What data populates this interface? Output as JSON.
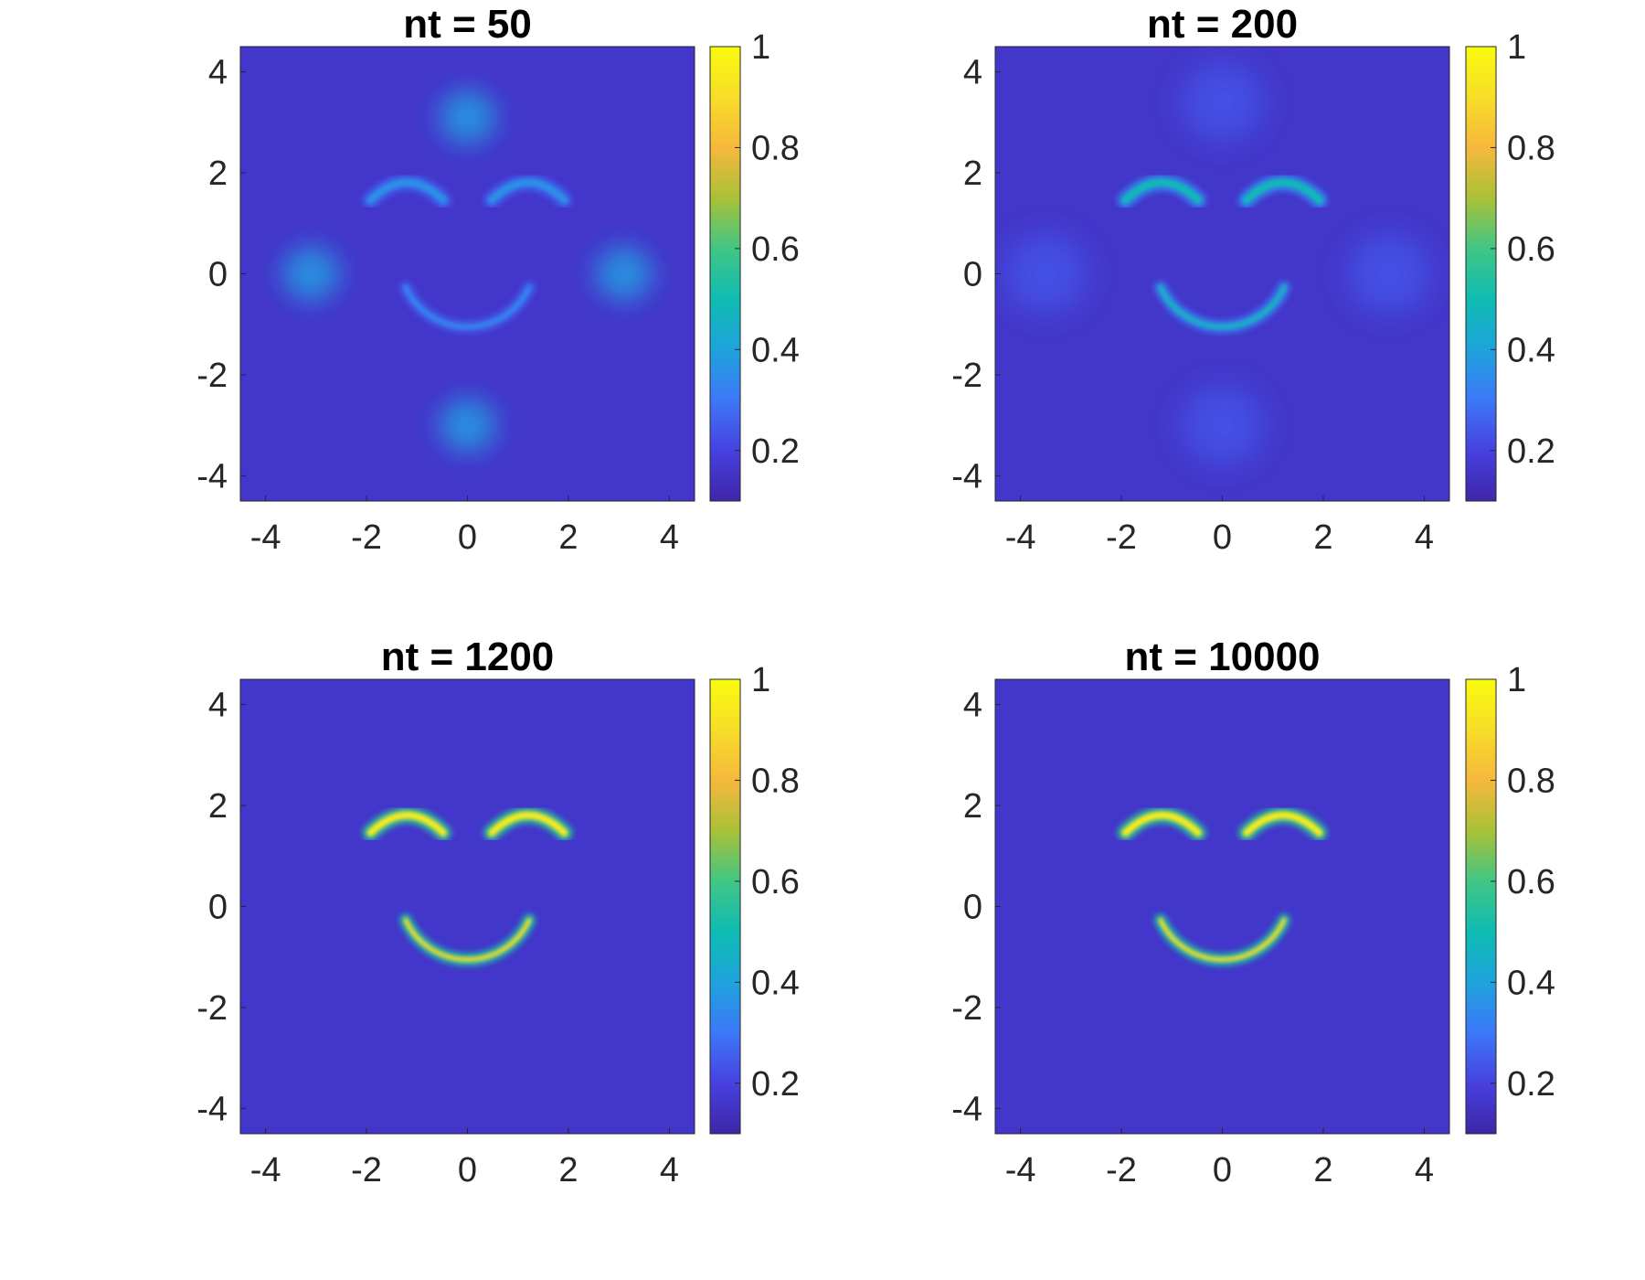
{
  "chart_data": [
    {
      "type": "heatmap",
      "title": "nt = 50",
      "xlabel": "",
      "ylabel": "",
      "xlim": [
        -4.5,
        4.5
      ],
      "ylim": [
        -4.5,
        4.5
      ],
      "x_ticks": [
        "-4",
        "-2",
        "0",
        "2",
        "4"
      ],
      "y_ticks": [
        "4",
        "2",
        "0",
        "-2",
        "-4"
      ],
      "colorbar": {
        "range": [
          0.1,
          1
        ],
        "ticks": [
          "1",
          "0.8",
          "0.6",
          "0.4",
          "0.2"
        ]
      },
      "background_value": 0.16,
      "features": [
        {
          "kind": "blob",
          "center": [
            0,
            3.1
          ],
          "radius": 0.75,
          "peak": 0.38
        },
        {
          "kind": "blob",
          "center": [
            0,
            -3.0
          ],
          "radius": 0.75,
          "peak": 0.38
        },
        {
          "kind": "blob",
          "center": [
            -3.1,
            0
          ],
          "radius": 0.75,
          "peak": 0.38
        },
        {
          "kind": "blob",
          "center": [
            3.1,
            0
          ],
          "radius": 0.75,
          "peak": 0.38
        },
        {
          "kind": "eyebrow",
          "center": [
            -1.2,
            1.7
          ],
          "peak": 0.36
        },
        {
          "kind": "eyebrow",
          "center": [
            1.2,
            1.7
          ],
          "peak": 0.36
        },
        {
          "kind": "smile",
          "center": [
            0,
            0.3
          ],
          "radius": 1.35,
          "peak": 0.34
        }
      ]
    },
    {
      "type": "heatmap",
      "title": "nt = 200",
      "xlabel": "",
      "ylabel": "",
      "xlim": [
        -4.5,
        4.5
      ],
      "ylim": [
        -4.5,
        4.5
      ],
      "x_ticks": [
        "-4",
        "-2",
        "0",
        "2",
        "4"
      ],
      "y_ticks": [
        "4",
        "2",
        "0",
        "-2",
        "-4"
      ],
      "colorbar": {
        "range": [
          0.1,
          1
        ],
        "ticks": [
          "1",
          "0.8",
          "0.6",
          "0.4",
          "0.2"
        ]
      },
      "background_value": 0.16,
      "features": [
        {
          "kind": "blob",
          "center": [
            0,
            3.4
          ],
          "radius": 1.1,
          "peak": 0.23
        },
        {
          "kind": "blob",
          "center": [
            0,
            -3.0
          ],
          "radius": 1.1,
          "peak": 0.23
        },
        {
          "kind": "blob",
          "center": [
            -3.5,
            0
          ],
          "radius": 1.1,
          "peak": 0.23
        },
        {
          "kind": "blob",
          "center": [
            3.3,
            0
          ],
          "radius": 1.1,
          "peak": 0.23
        },
        {
          "kind": "eyebrow",
          "center": [
            -1.2,
            1.7
          ],
          "peak": 0.5
        },
        {
          "kind": "eyebrow",
          "center": [
            1.2,
            1.7
          ],
          "peak": 0.5
        },
        {
          "kind": "smile",
          "center": [
            0,
            0.3
          ],
          "radius": 1.35,
          "peak": 0.48
        }
      ]
    },
    {
      "type": "heatmap",
      "title": "nt = 1200",
      "xlabel": "",
      "ylabel": "",
      "xlim": [
        -4.5,
        4.5
      ],
      "ylim": [
        -4.5,
        4.5
      ],
      "x_ticks": [
        "-4",
        "-2",
        "0",
        "2",
        "4"
      ],
      "y_ticks": [
        "4",
        "2",
        "0",
        "-2",
        "-4"
      ],
      "colorbar": {
        "range": [
          0.1,
          1
        ],
        "ticks": [
          "1",
          "0.8",
          "0.6",
          "0.4",
          "0.2"
        ]
      },
      "background_value": 0.16,
      "features": [
        {
          "kind": "eyebrow",
          "center": [
            -1.2,
            1.7
          ],
          "peak": 0.95
        },
        {
          "kind": "eyebrow",
          "center": [
            1.2,
            1.7
          ],
          "peak": 0.95
        },
        {
          "kind": "smile",
          "center": [
            0,
            0.3
          ],
          "radius": 1.35,
          "peak": 0.9
        }
      ]
    },
    {
      "type": "heatmap",
      "title": "nt = 10000",
      "xlabel": "",
      "ylabel": "",
      "xlim": [
        -4.5,
        4.5
      ],
      "ylim": [
        -4.5,
        4.5
      ],
      "x_ticks": [
        "-4",
        "-2",
        "0",
        "2",
        "4"
      ],
      "y_ticks": [
        "4",
        "2",
        "0",
        "-2",
        "-4"
      ],
      "colorbar": {
        "range": [
          0.1,
          1
        ],
        "ticks": [
          "1",
          "0.8",
          "0.6",
          "0.4",
          "0.2"
        ]
      },
      "background_value": 0.16,
      "features": [
        {
          "kind": "eyebrow",
          "center": [
            -1.2,
            1.7
          ],
          "peak": 0.95
        },
        {
          "kind": "eyebrow",
          "center": [
            1.2,
            1.7
          ],
          "peak": 0.95
        },
        {
          "kind": "smile",
          "center": [
            0,
            0.3
          ],
          "radius": 1.35,
          "peak": 0.9
        }
      ]
    }
  ],
  "colormap": [
    "#3e26a8",
    "#4741e0",
    "#3d78f8",
    "#1ea3dc",
    "#0fbcb2",
    "#41c685",
    "#a9c137",
    "#f6b83c",
    "#f7dd28",
    "#f9fb0e"
  ]
}
